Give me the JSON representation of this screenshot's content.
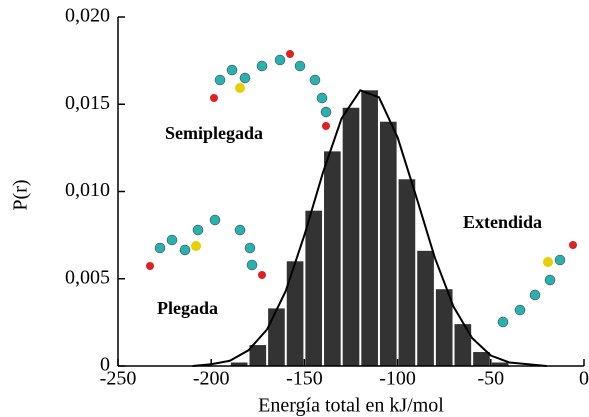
{
  "chart_data": {
    "type": "histogram",
    "ylabel": "P(r)",
    "xlabel": "Energía total en kJ/mol",
    "bins": [
      -190,
      -180,
      -170,
      -160,
      -150,
      -140,
      -130,
      -120,
      -110,
      -100,
      -90,
      -80,
      -70,
      -60,
      -50,
      -40
    ],
    "values": [
      0.0002,
      0.0012,
      0.0033,
      0.006,
      0.0089,
      0.0123,
      0.0148,
      0.0158,
      0.014,
      0.0107,
      0.0066,
      0.0044,
      0.0024,
      0.0008,
      0.0002
    ],
    "color": "#333333",
    "fit": {
      "color": "#000000",
      "x": [
        -210,
        -200,
        -190,
        -180,
        -170,
        -160,
        -150,
        -140,
        -130,
        -120,
        -110,
        -100,
        -90,
        -80,
        -70,
        -60,
        -50,
        -40,
        -30,
        -20
      ],
      "values": [
        0,
        0.0001,
        0.0003,
        0.0009,
        0.0021,
        0.0043,
        0.0075,
        0.0111,
        0.0142,
        0.0158,
        0.0154,
        0.0131,
        0.0097,
        0.0062,
        0.0034,
        0.0016,
        0.0006,
        0.0002,
        0.0001,
        0
      ]
    },
    "xlim": [
      -250,
      0
    ],
    "xticks": [
      -250,
      -200,
      -150,
      -100,
      -50,
      0
    ],
    "ylim": [
      0,
      0.02
    ],
    "yticks": [
      0,
      {
        "value": 0.005,
        "label": "0,005"
      },
      {
        "value": 0.01,
        "label": "0,010"
      },
      {
        "value": 0.015,
        "label": "0,015"
      },
      {
        "value": 0.02,
        "label": "0,020"
      }
    ],
    "annotations": [
      "Semiplegada",
      "Plegada",
      "Extendida"
    ]
  }
}
